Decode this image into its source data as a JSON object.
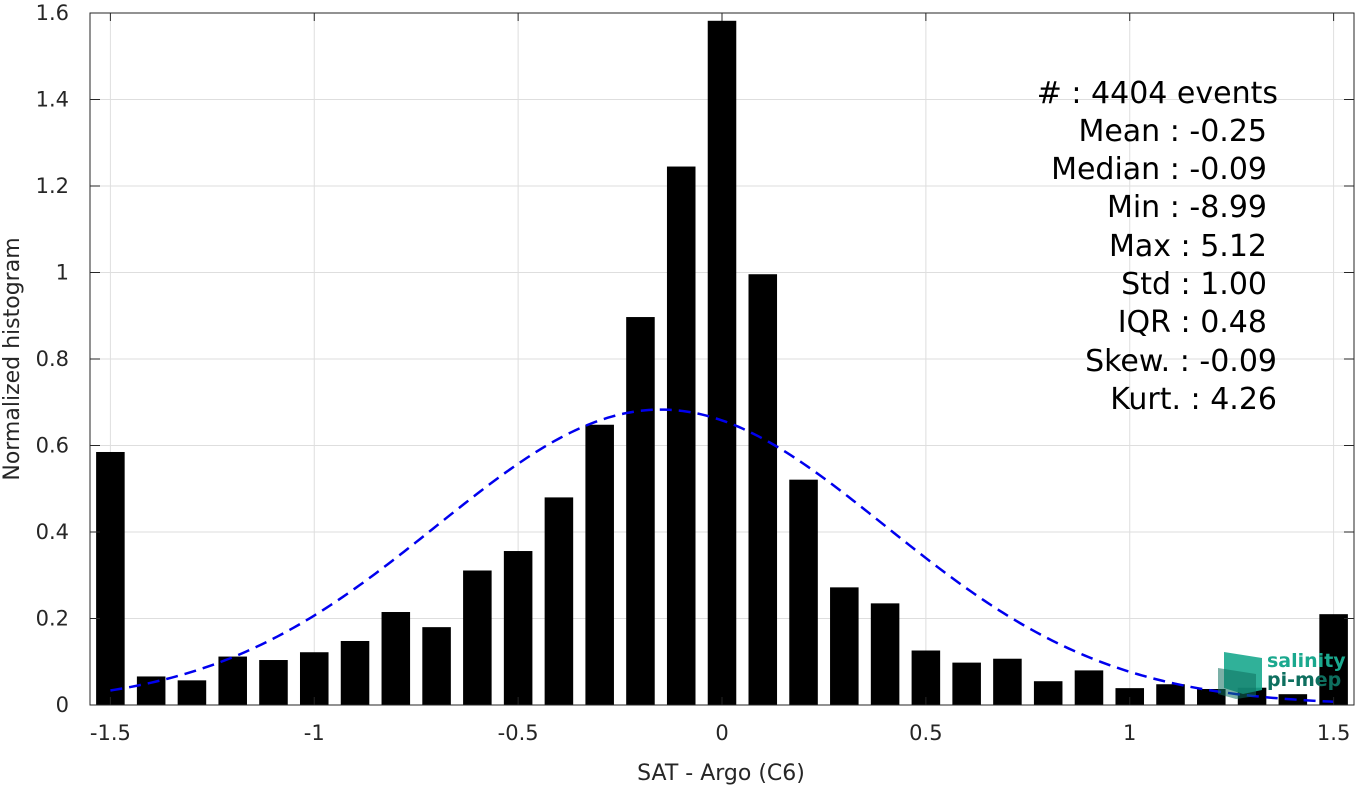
{
  "chart_data": {
    "type": "bar",
    "xlabel": "SAT - Argo (C6)",
    "ylabel": "Normalized histogram",
    "xlim": [
      -1.55,
      1.55
    ],
    "ylim": [
      0,
      1.6
    ],
    "xticks": [
      -1.5,
      -1,
      -0.5,
      0,
      0.5,
      1,
      1.5
    ],
    "xtick_labels": [
      "-1.5",
      "-1",
      "-0.5",
      "0",
      "0.5",
      "1",
      "1.5"
    ],
    "yticks": [
      0,
      0.2,
      0.4,
      0.6,
      0.8,
      1,
      1.2,
      1.4,
      1.6
    ],
    "ytick_labels": [
      "0",
      "0.2",
      "0.4",
      "0.6",
      "0.8",
      "1",
      "1.2",
      "1.4",
      "1.6"
    ],
    "grid": true,
    "bar_width": 0.07,
    "bars": {
      "x": [
        -1.5,
        -1.4,
        -1.3,
        -1.2,
        -1.1,
        -1.0,
        -0.9,
        -0.8,
        -0.7,
        -0.6,
        -0.5,
        -0.4,
        -0.3,
        -0.2,
        -0.1,
        0.0,
        0.1,
        0.2,
        0.3,
        0.4,
        0.5,
        0.6,
        0.7,
        0.8,
        0.9,
        1.0,
        1.1,
        1.2,
        1.3,
        1.4,
        1.5
      ],
      "values": [
        0.585,
        0.066,
        0.057,
        0.112,
        0.104,
        0.122,
        0.148,
        0.215,
        0.18,
        0.311,
        0.356,
        0.48,
        0.648,
        0.897,
        1.245,
        1.582,
        0.996,
        0.521,
        0.272,
        0.235,
        0.126,
        0.098,
        0.107,
        0.055,
        0.08,
        0.039,
        0.048,
        0.037,
        0.04,
        0.025,
        0.21
      ],
      "color": "#000000"
    },
    "fit_curve": {
      "style": "dashed",
      "color": "#0000ee",
      "mean": -0.15,
      "std": 0.55,
      "peak": 0.683,
      "x_range": [
        -1.5,
        1.5
      ]
    }
  },
  "stats": {
    "events": "#  : 4404 events",
    "mean": "Mean : -0.25",
    "median": "Median : -0.09",
    "min": "Min : -8.99",
    "max": "Max : 5.12",
    "std": "Std : 1.00",
    "iqr": "IQR : 0.48",
    "skew": "Skew. : -0.09",
    "kurt": "Kurt. : 4.26"
  },
  "logo": {
    "line1": "salinity",
    "line2": "pi-mep",
    "colors": {
      "primary": "#1aa88e",
      "dark": "#0e6f5f"
    }
  }
}
